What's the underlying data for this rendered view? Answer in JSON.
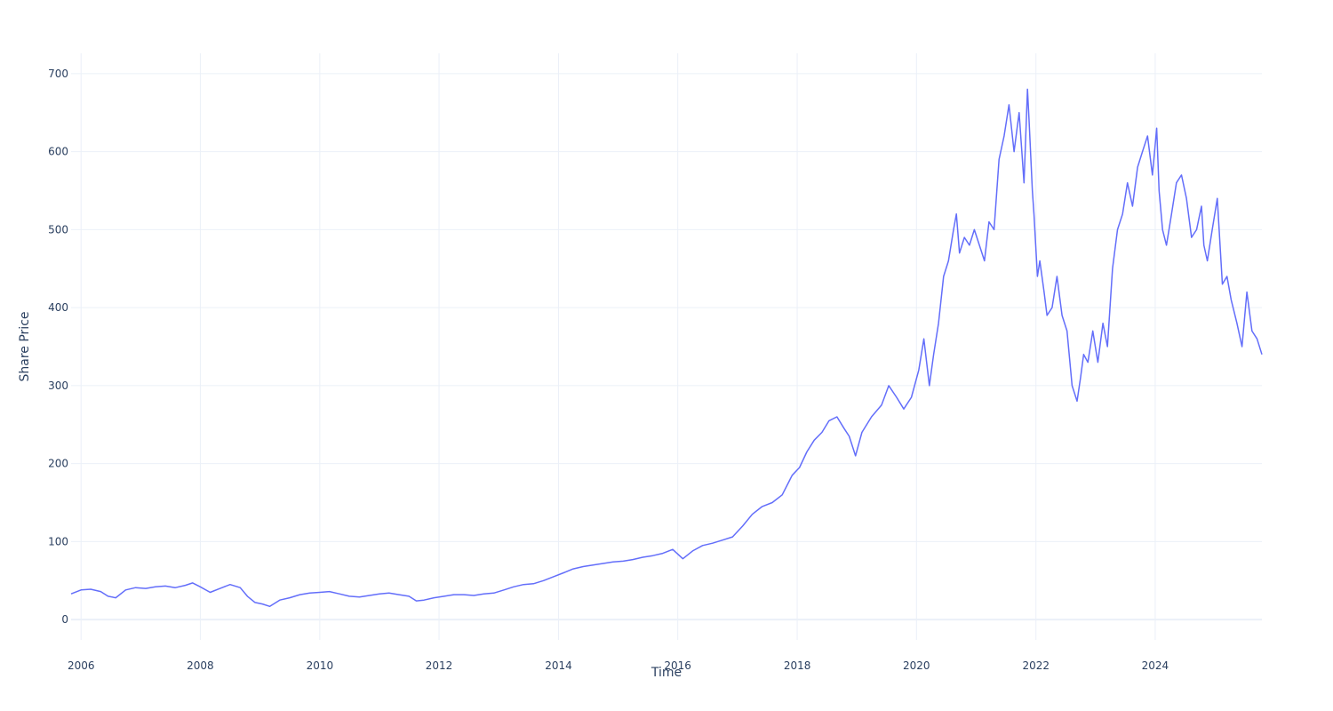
{
  "chart_data": {
    "type": "line",
    "xlabel": "Time",
    "ylabel": "Share Price",
    "xlim": [
      "2005-11-01",
      "2025-10-15"
    ],
    "ylim": [
      -26,
      726
    ],
    "x_ticks": [
      "2006",
      "2008",
      "2010",
      "2012",
      "2014",
      "2016",
      "2018",
      "2020",
      "2022",
      "2024"
    ],
    "y_ticks": [
      0,
      100,
      200,
      300,
      400,
      500,
      600,
      700
    ],
    "grid": true,
    "legend": "none",
    "line_color": "#636efa",
    "series": [
      {
        "x": [
          "2005-11-01",
          "2006-01-01",
          "2006-03-01",
          "2006-05-01",
          "2006-06-15",
          "2006-08-01",
          "2006-10-01",
          "2006-12-01",
          "2007-02-01",
          "2007-04-01",
          "2007-06-01",
          "2007-08-01",
          "2007-10-01",
          "2007-11-15",
          "2008-01-01",
          "2008-03-01",
          "2008-05-01",
          "2008-07-01",
          "2008-09-01",
          "2008-10-15",
          "2008-12-01",
          "2009-01-15",
          "2009-03-01",
          "2009-05-01",
          "2009-07-01",
          "2009-09-01",
          "2009-11-01",
          "2010-01-01",
          "2010-03-01",
          "2010-05-01",
          "2010-07-01",
          "2010-09-01",
          "2010-11-01",
          "2011-01-01",
          "2011-03-01",
          "2011-05-01",
          "2011-07-01",
          "2011-08-15",
          "2011-10-01",
          "2011-12-01",
          "2012-02-01",
          "2012-04-01",
          "2012-06-01",
          "2012-08-01",
          "2012-10-01",
          "2012-12-01",
          "2013-02-01",
          "2013-04-01",
          "2013-06-01",
          "2013-08-01",
          "2013-10-01",
          "2013-12-01",
          "2014-02-01",
          "2014-04-01",
          "2014-06-01",
          "2014-08-01",
          "2014-10-01",
          "2014-12-01",
          "2015-02-01",
          "2015-04-01",
          "2015-06-01",
          "2015-08-01",
          "2015-10-01",
          "2015-12-01",
          "2016-02-01",
          "2016-04-01",
          "2016-06-01",
          "2016-08-01",
          "2016-10-01",
          "2016-12-01",
          "2017-02-01",
          "2017-04-01",
          "2017-06-01",
          "2017-08-01",
          "2017-10-01",
          "2017-12-01",
          "2018-01-15",
          "2018-03-01",
          "2018-04-15",
          "2018-06-01",
          "2018-07-15",
          "2018-09-01",
          "2018-10-15",
          "2018-11-15",
          "2018-12-24",
          "2019-02-01",
          "2019-04-01",
          "2019-06-01",
          "2019-07-15",
          "2019-09-01",
          "2019-10-15",
          "2019-12-01",
          "2020-01-15",
          "2020-02-15",
          "2020-03-20",
          "2020-04-15",
          "2020-05-15",
          "2020-06-15",
          "2020-07-15",
          "2020-08-15",
          "2020-09-01",
          "2020-09-20",
          "2020-10-20",
          "2020-11-20",
          "2020-12-20",
          "2021-01-20",
          "2021-02-20",
          "2021-03-20",
          "2021-04-20",
          "2021-05-20",
          "2021-06-20",
          "2021-07-20",
          "2021-08-20",
          "2021-09-20",
          "2021-10-20",
          "2021-11-10",
          "2021-11-20",
          "2021-12-10",
          "2021-12-20",
          "2022-01-10",
          "2022-01-25",
          "2022-02-20",
          "2022-03-10",
          "2022-04-10",
          "2022-05-10",
          "2022-06-10",
          "2022-07-10",
          "2022-08-10",
          "2022-09-10",
          "2022-10-01",
          "2022-10-20",
          "2022-11-15",
          "2022-12-15",
          "2023-01-15",
          "2023-02-15",
          "2023-03-15",
          "2023-04-15",
          "2023-05-15",
          "2023-06-15",
          "2023-07-15",
          "2023-08-15",
          "2023-09-15",
          "2023-10-15",
          "2023-11-15",
          "2023-12-15",
          "2024-01-10",
          "2024-01-25",
          "2024-02-15",
          "2024-03-10",
          "2024-04-10",
          "2024-05-10",
          "2024-06-10",
          "2024-07-10",
          "2024-08-10",
          "2024-09-10",
          "2024-10-10",
          "2024-10-25",
          "2024-11-15",
          "2024-12-15",
          "2025-01-15",
          "2025-02-15",
          "2025-03-15",
          "2025-04-10",
          "2025-05-15",
          "2025-06-15",
          "2025-07-15",
          "2025-08-15",
          "2025-09-15",
          "2025-10-15"
        ],
        "y": [
          33,
          38,
          39,
          36,
          30,
          28,
          38,
          41,
          40,
          42,
          43,
          41,
          44,
          47,
          42,
          35,
          40,
          45,
          41,
          30,
          22,
          20,
          17,
          25,
          28,
          32,
          34,
          35,
          36,
          33,
          30,
          29,
          31,
          33,
          34,
          32,
          30,
          24,
          25,
          28,
          30,
          32,
          32,
          31,
          33,
          34,
          38,
          42,
          45,
          46,
          50,
          55,
          60,
          65,
          68,
          70,
          72,
          74,
          75,
          77,
          80,
          82,
          85,
          90,
          78,
          88,
          95,
          98,
          102,
          106,
          120,
          135,
          145,
          150,
          160,
          185,
          195,
          215,
          230,
          240,
          255,
          260,
          245,
          235,
          210,
          240,
          260,
          275,
          300,
          285,
          270,
          285,
          320,
          360,
          300,
          340,
          380,
          440,
          460,
          500,
          520,
          470,
          490,
          480,
          500,
          480,
          460,
          510,
          500,
          590,
          620,
          660,
          600,
          650,
          560,
          680,
          640,
          550,
          520,
          440,
          460,
          420,
          390,
          400,
          440,
          390,
          370,
          300,
          280,
          310,
          340,
          330,
          370,
          330,
          380,
          350,
          450,
          500,
          520,
          560,
          530,
          580,
          600,
          620,
          570,
          630,
          550,
          500,
          480,
          520,
          560,
          570,
          540,
          490,
          500,
          530,
          480,
          460,
          500,
          540,
          430,
          440,
          410,
          380,
          350,
          420,
          370,
          360,
          340
        ]
      }
    ]
  }
}
